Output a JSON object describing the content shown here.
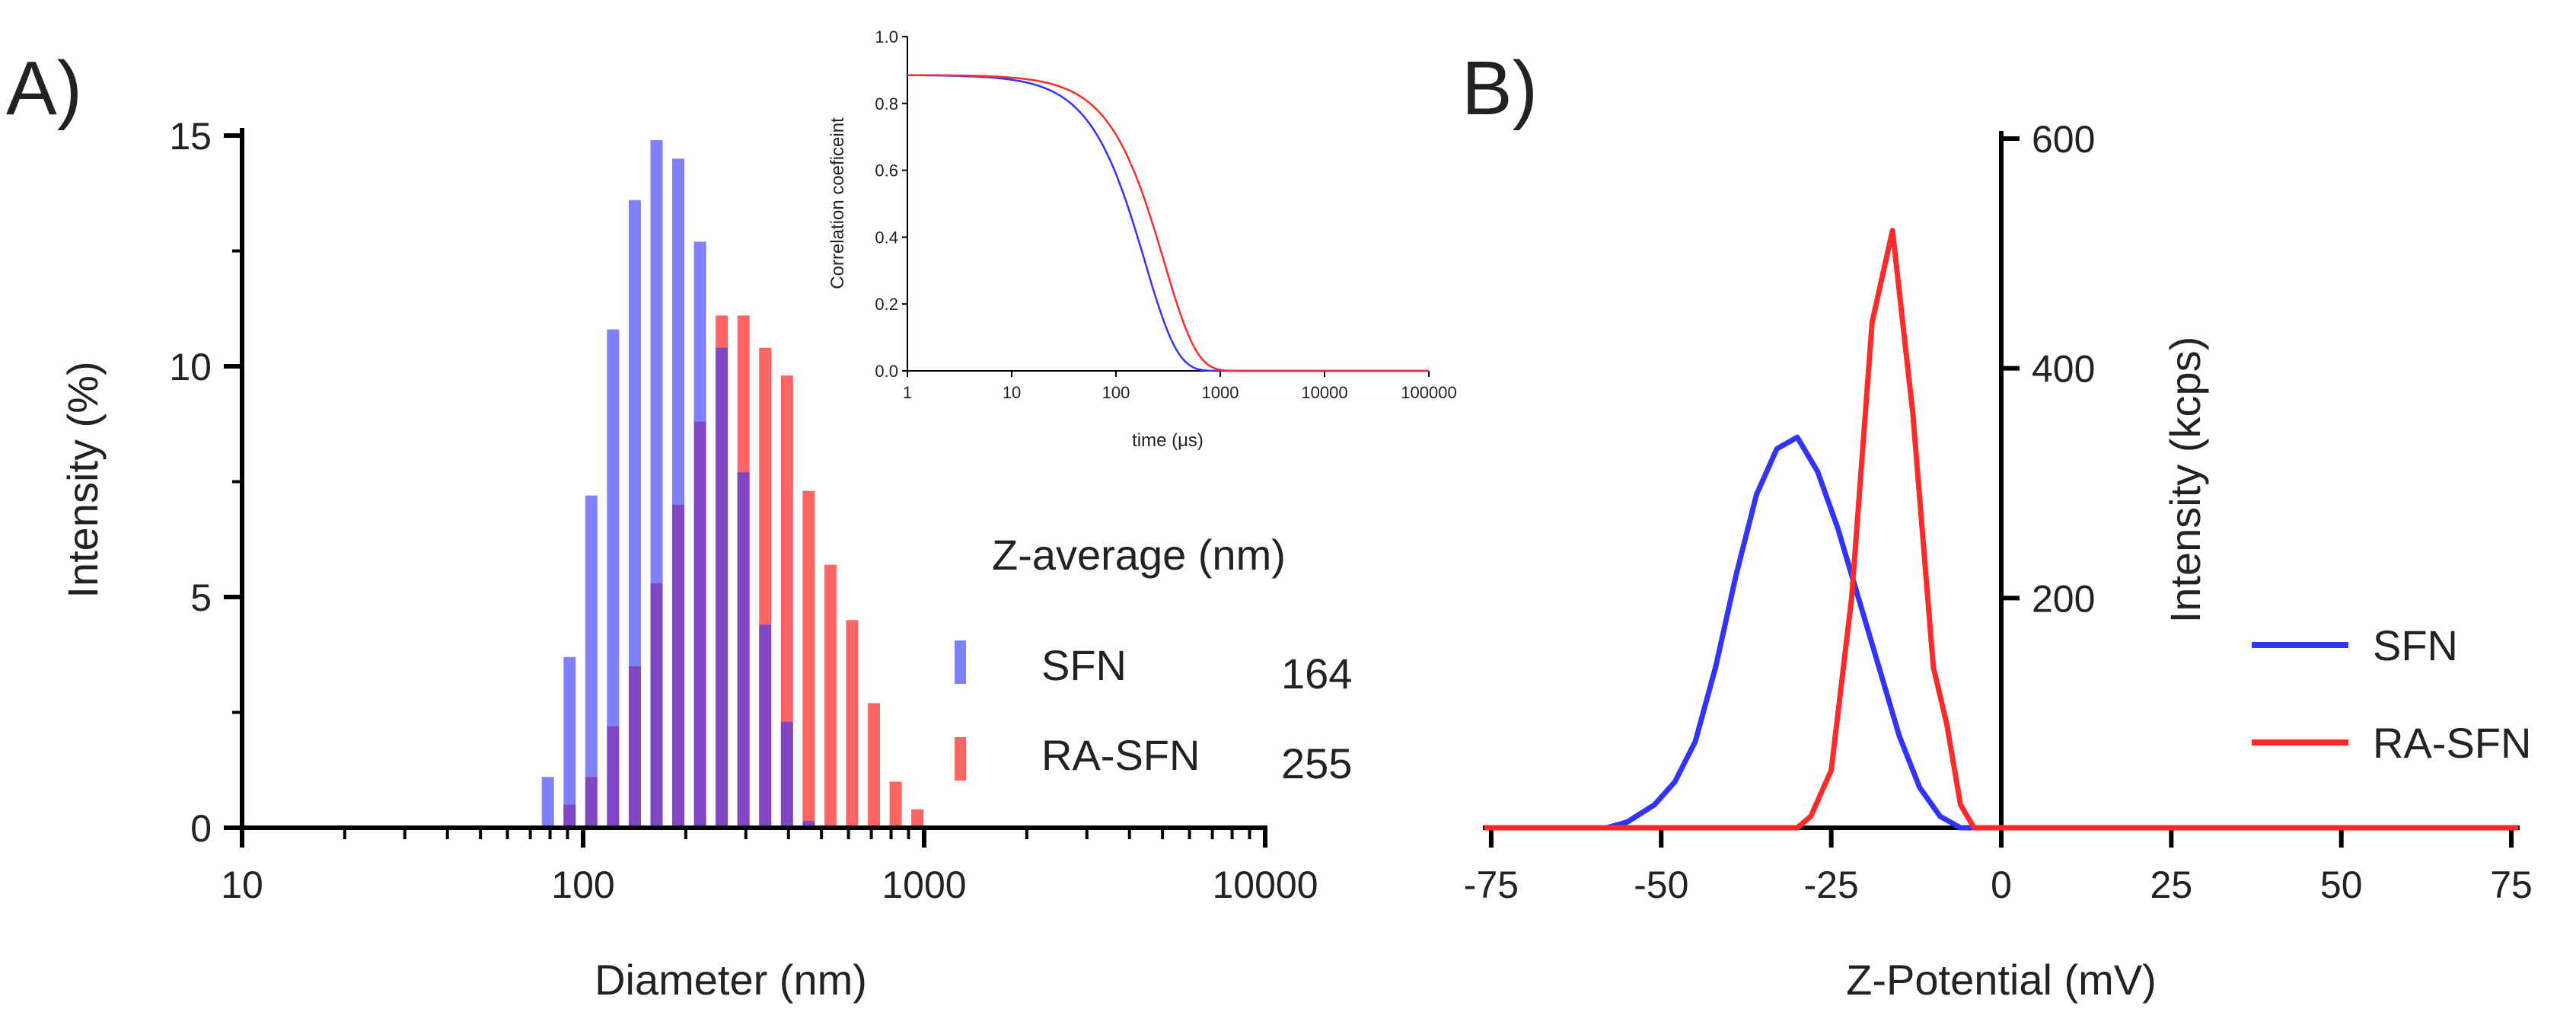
{
  "colors": {
    "sfn": "#3333ff",
    "ra_sfn": "#ff2a2a",
    "axis": "#000000",
    "text": "#222222"
  },
  "panel_labels": {
    "a": "A)",
    "b": "B)"
  },
  "chart_data": [
    {
      "id": "A",
      "type": "bar",
      "title": "",
      "xlabel": "Diameter (nm)",
      "ylabel": "Intensity (%)",
      "xscale": "log",
      "xlim": [
        10,
        10000
      ],
      "ylim": [
        0,
        15
      ],
      "xticks": [
        10,
        100,
        1000,
        10000
      ],
      "xtick_labels": [
        "10",
        "100",
        "1000",
        "10000"
      ],
      "yticks": [
        0,
        5,
        10,
        15
      ],
      "ytick_labels": [
        "0",
        "5",
        "10",
        "15"
      ],
      "grid": false,
      "legend_title": "Z-average (nm)",
      "legend_position": "right",
      "series": [
        {
          "name": "SFN",
          "z_average": "164",
          "x": [
            78.8,
            91.3,
            105.7,
            122.4,
            141.8,
            164.2,
            190.1,
            220.2,
            255.0,
            295.3,
            342.0,
            396.1,
            458.7
          ],
          "values": [
            1.1,
            3.7,
            7.2,
            10.8,
            13.6,
            14.9,
            14.5,
            12.7,
            10.4,
            7.7,
            4.4,
            2.3,
            0.15
          ]
        },
        {
          "name": "RA-SFN",
          "z_average": "255",
          "x": [
            91.3,
            105.7,
            122.4,
            141.8,
            164.2,
            190.1,
            220.2,
            255.0,
            295.3,
            342.0,
            396.1,
            458.7,
            531.2,
            615.1,
            712.4,
            825.0,
            955.4
          ],
          "values": [
            0.5,
            1.1,
            2.2,
            3.5,
            5.3,
            7.0,
            8.8,
            11.1,
            11.1,
            10.4,
            9.8,
            7.3,
            5.7,
            4.5,
            2.7,
            1.0,
            0.4
          ]
        }
      ]
    },
    {
      "id": "A-inset",
      "type": "line",
      "title": "",
      "xlabel": "time (μs)",
      "ylabel": "Correlation coeficeint",
      "xscale": "log",
      "xlim": [
        1,
        100000
      ],
      "ylim": [
        0,
        1
      ],
      "xticks": [
        1,
        10,
        100,
        1000,
        10000,
        100000
      ],
      "xtick_labels": [
        "1",
        "10",
        "100",
        "1000",
        "10000",
        "100000"
      ],
      "yticks": [
        0,
        0.2,
        0.4,
        0.6,
        0.8,
        1.0
      ],
      "ytick_labels": [
        "0.0",
        "0.2",
        "0.4",
        "0.6",
        "0.8",
        "1.0"
      ],
      "grid": false,
      "series": [
        {
          "name": "SFN",
          "amplitude": 0.885,
          "tau_us": 190,
          "beta": 1.0
        },
        {
          "name": "RA-SFN",
          "amplitude": 0.885,
          "tau_us": 290,
          "beta": 1.0
        }
      ]
    },
    {
      "id": "B",
      "type": "line",
      "title": "",
      "xlabel": "Z-Potential (mV)",
      "ylabel": "Intensity (kcps)",
      "xlim": [
        -76,
        76
      ],
      "ylim": [
        0,
        600
      ],
      "xticks": [
        -75,
        -50,
        -25,
        0,
        25,
        50,
        75
      ],
      "xtick_labels": [
        "-75",
        "-50",
        "-25",
        "0",
        "25",
        "50",
        "75"
      ],
      "yticks": [
        0,
        200,
        400,
        600
      ],
      "ytick_labels": [
        "",
        "200",
        "400",
        "600"
      ],
      "grid": false,
      "legend_position": "right",
      "series": [
        {
          "name": "SFN",
          "x": [
            -76,
            -58,
            -55,
            -51,
            -48,
            -45,
            -42,
            -39,
            -36,
            -33,
            -30,
            -27,
            -24,
            -21,
            -18,
            -15,
            -12,
            -9,
            -6,
            76
          ],
          "y": [
            0,
            0,
            5,
            20,
            40,
            75,
            140,
            220,
            290,
            330,
            340,
            310,
            260,
            200,
            140,
            80,
            35,
            10,
            0,
            0
          ]
        },
        {
          "name": "RA-SFN",
          "x": [
            -76,
            -30,
            -28,
            -25,
            -22,
            -19,
            -16,
            -13,
            -10,
            -8,
            -6,
            -4,
            76
          ],
          "y": [
            0,
            0,
            10,
            50,
            200,
            440,
            520,
            360,
            140,
            90,
            20,
            0,
            0
          ]
        }
      ]
    }
  ]
}
